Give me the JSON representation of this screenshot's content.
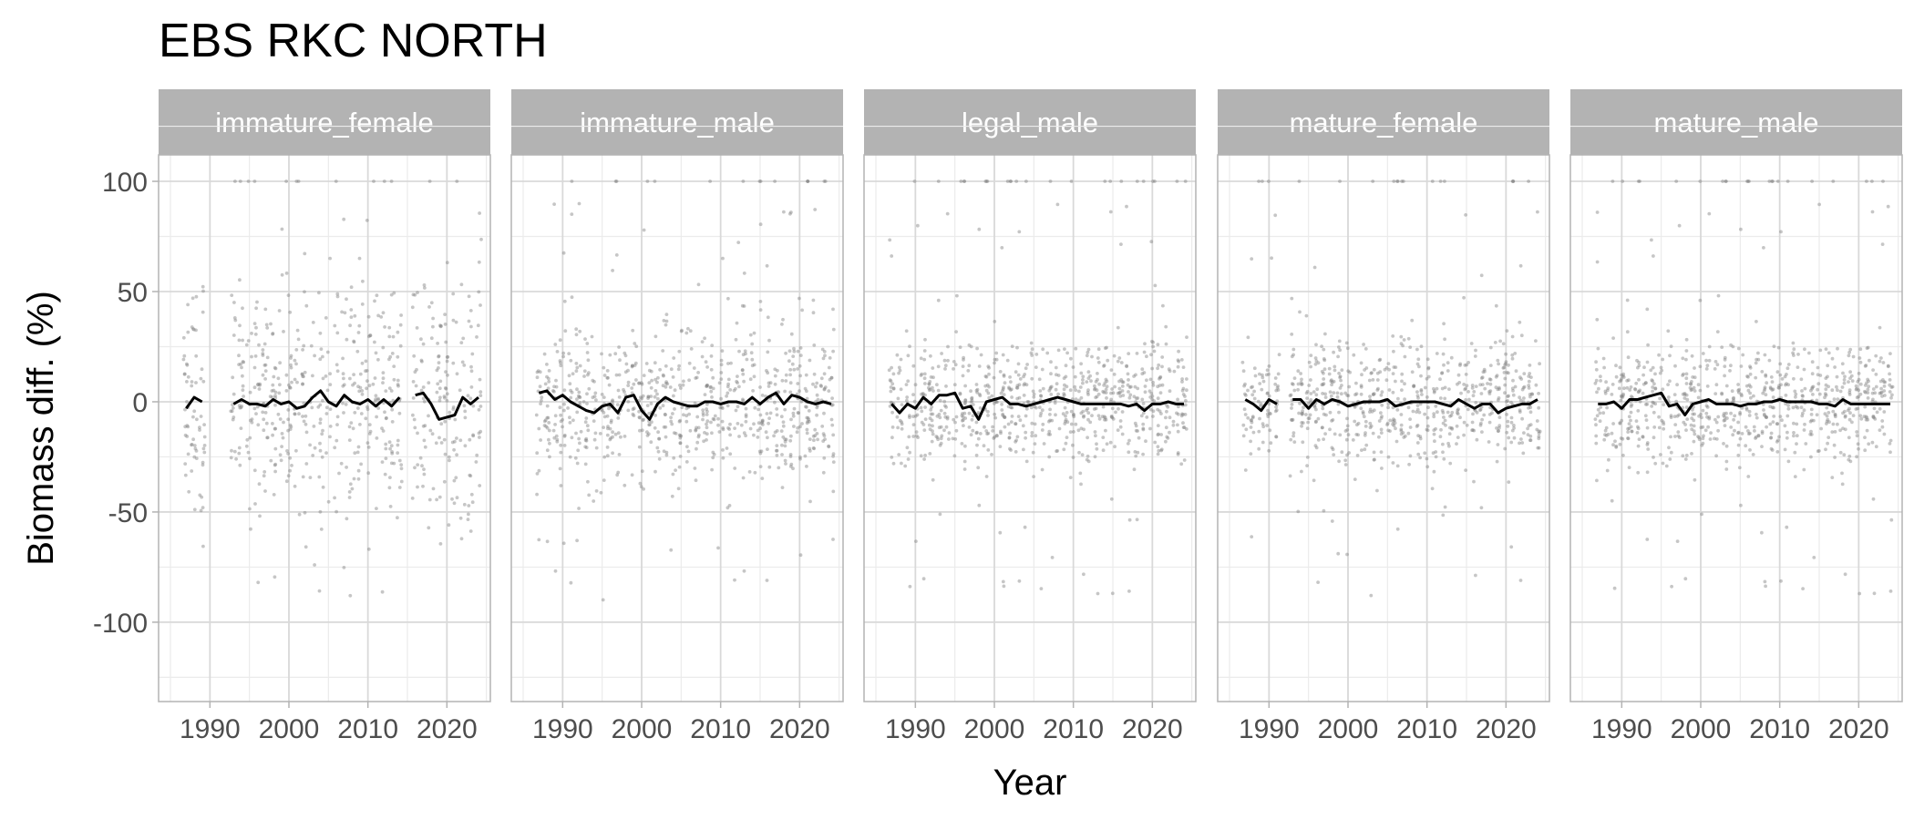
{
  "chart_data": {
    "type": "scatter",
    "title": "EBS RKC NORTH",
    "xlabel": "Year",
    "ylabel": "Biomass diff. (%)",
    "xlim": [
      1983.5,
      2025.5
    ],
    "ylim": [
      -136,
      112
    ],
    "x_ticks": [
      1990,
      2000,
      2010,
      2020
    ],
    "y_ticks": [
      100,
      50,
      0,
      -50,
      -100
    ],
    "grid": true,
    "point_color": "#808080",
    "line_color": "#000000",
    "strip_color": "#b3b3b3",
    "panels": [
      {
        "label": "immature_female",
        "years": [
          1987,
          1988,
          1989,
          1993,
          1994,
          1995,
          1996,
          1997,
          1998,
          1999,
          2000,
          2001,
          2002,
          2003,
          2004,
          2005,
          2006,
          2007,
          2008,
          2009,
          2010,
          2011,
          2012,
          2013,
          2014,
          2016,
          2017,
          2018,
          2019,
          2020,
          2021,
          2022,
          2023,
          2024
        ],
        "mean": [
          -3,
          2,
          0,
          -1,
          1,
          -1,
          -1,
          -2,
          1,
          -1,
          0,
          -3,
          -2,
          2,
          5,
          0,
          -2,
          3,
          0,
          -1,
          1,
          -2,
          1,
          -2,
          2,
          3,
          4,
          -1,
          -8,
          -7,
          -6,
          2,
          -1,
          2
        ],
        "spread": 40
      },
      {
        "label": "immature_male",
        "years": [
          1987,
          1988,
          1989,
          1990,
          1991,
          1992,
          1993,
          1994,
          1995,
          1996,
          1997,
          1998,
          1999,
          2000,
          2001,
          2002,
          2003,
          2004,
          2005,
          2006,
          2007,
          2008,
          2009,
          2010,
          2011,
          2012,
          2013,
          2014,
          2015,
          2016,
          2017,
          2018,
          2019,
          2020,
          2021,
          2022,
          2023,
          2024
        ],
        "mean": [
          4,
          5,
          1,
          3,
          0,
          -2,
          -4,
          -5,
          -2,
          -1,
          -5,
          2,
          3,
          -4,
          -8,
          -1,
          2,
          0,
          -1,
          -2,
          -2,
          0,
          0,
          -1,
          0,
          0,
          -1,
          2,
          -1,
          2,
          4,
          -1,
          3,
          2,
          0,
          -1,
          0,
          -1
        ],
        "spread": 28
      },
      {
        "label": "legal_male",
        "years": [
          1987,
          1988,
          1989,
          1990,
          1991,
          1992,
          1993,
          1994,
          1995,
          1996,
          1997,
          1998,
          1999,
          2000,
          2001,
          2002,
          2003,
          2004,
          2005,
          2006,
          2007,
          2008,
          2009,
          2010,
          2011,
          2012,
          2013,
          2014,
          2015,
          2016,
          2017,
          2018,
          2019,
          2020,
          2021,
          2022,
          2023,
          2024
        ],
        "mean": [
          -1,
          -5,
          -1,
          -3,
          2,
          -1,
          3,
          3,
          4,
          -3,
          -2,
          -8,
          0,
          1,
          2,
          -1,
          -1,
          -2,
          -1,
          0,
          1,
          2,
          1,
          0,
          -1,
          -1,
          -1,
          -1,
          -1,
          -1,
          -2,
          -1,
          -4,
          -1,
          -1,
          0,
          -1,
          -1
        ],
        "spread": 22
      },
      {
        "label": "mature_female",
        "years": [
          1987,
          1988,
          1989,
          1990,
          1991,
          1993,
          1994,
          1995,
          1996,
          1997,
          1998,
          1999,
          2000,
          2001,
          2002,
          2003,
          2004,
          2005,
          2006,
          2007,
          2008,
          2009,
          2010,
          2011,
          2012,
          2013,
          2014,
          2015,
          2016,
          2017,
          2018,
          2019,
          2020,
          2021,
          2022,
          2023,
          2024
        ],
        "mean": [
          1,
          -1,
          -4,
          1,
          -1,
          1,
          1,
          -3,
          1,
          -1,
          1,
          0,
          -2,
          -1,
          0,
          0,
          0,
          1,
          -2,
          -1,
          0,
          0,
          0,
          0,
          -1,
          -2,
          1,
          -1,
          -3,
          -1,
          -1,
          -5,
          -3,
          -2,
          -1,
          -1,
          1
        ],
        "spread": 22
      },
      {
        "label": "mature_male",
        "years": [
          1987,
          1988,
          1989,
          1990,
          1991,
          1992,
          1993,
          1994,
          1995,
          1996,
          1997,
          1998,
          1999,
          2000,
          2001,
          2002,
          2003,
          2004,
          2005,
          2006,
          2007,
          2008,
          2009,
          2010,
          2011,
          2012,
          2013,
          2014,
          2015,
          2016,
          2017,
          2018,
          2019,
          2020,
          2021,
          2022,
          2023,
          2024
        ],
        "mean": [
          -1,
          -1,
          0,
          -3,
          1,
          1,
          2,
          3,
          4,
          -2,
          -1,
          -6,
          -1,
          0,
          1,
          -1,
          -1,
          -1,
          -2,
          -1,
          -1,
          0,
          0,
          1,
          0,
          0,
          0,
          0,
          -1,
          -1,
          -2,
          1,
          -1,
          -1,
          -1,
          -1,
          -1,
          -1
        ],
        "spread": 22
      }
    ]
  }
}
